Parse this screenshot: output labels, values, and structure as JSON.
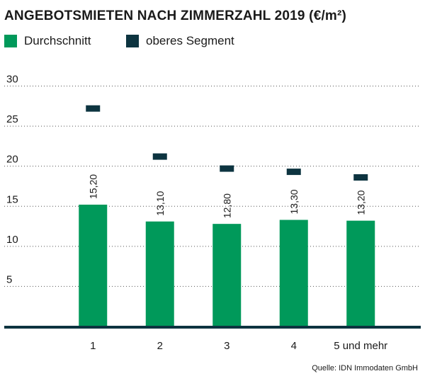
{
  "chart_data": {
    "type": "bar",
    "title": "ANGEBOTSMIETEN NACH ZIMMERZAHL 2019 (€/m²)",
    "categories": [
      "1",
      "2",
      "3",
      "4",
      "5 und mehr"
    ],
    "series": [
      {
        "name": "Durchschnitt",
        "kind": "bar",
        "color": "#00995a",
        "values": [
          15.2,
          13.1,
          12.8,
          13.3,
          13.2
        ],
        "labels": [
          "15,20",
          "13,10",
          "12,80",
          "13,30",
          "13,20"
        ]
      },
      {
        "name": "oberes Segment",
        "kind": "marker",
        "color": "#0d3440",
        "values": [
          27.2,
          21.2,
          19.7,
          19.3,
          18.6
        ]
      }
    ],
    "ylim": [
      0,
      30
    ],
    "yticks": [
      "5",
      "10",
      "15",
      "20",
      "25",
      "30"
    ],
    "grid": "horizontal-dotted",
    "legend_position": "top-left"
  },
  "source": "Quelle: IDN Immodaten GmbH"
}
